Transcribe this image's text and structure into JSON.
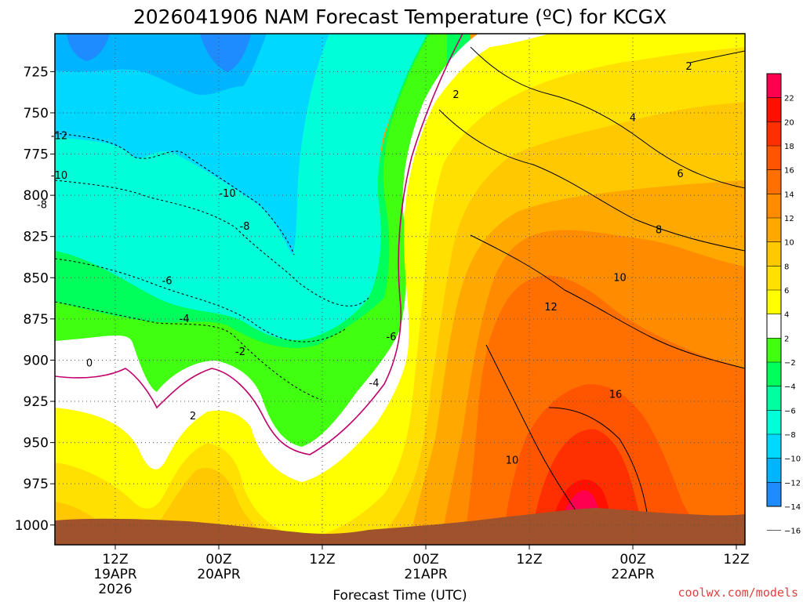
{
  "chart_data": {
    "type": "heatmap",
    "title": "2026041906 NAM Forecast Temperature (ºC) for KCGX",
    "xlabel": "Forecast Time (UTC)",
    "ylabel": "",
    "y_axis": {
      "ticks": [
        725,
        750,
        775,
        800,
        825,
        850,
        875,
        900,
        925,
        950,
        975,
        1000
      ],
      "unit": "hPa",
      "reversed": true,
      "range": [
        1012,
        702
      ]
    },
    "x_axis": {
      "range_hours_from_init": [
        -1,
        79
      ],
      "ticks": [
        {
          "hour": 6,
          "lines": [
            "12Z",
            "19APR",
            "2026"
          ]
        },
        {
          "hour": 18,
          "lines": [
            "00Z",
            "20APR"
          ]
        },
        {
          "hour": 30,
          "lines": [
            "12Z"
          ]
        },
        {
          "hour": 42,
          "lines": [
            "00Z",
            "21APR"
          ]
        },
        {
          "hour": 54,
          "lines": [
            "12Z"
          ]
        },
        {
          "hour": 66,
          "lines": [
            "00Z",
            "22APR"
          ]
        },
        {
          "hour": 78,
          "lines": [
            "12Z"
          ]
        }
      ]
    },
    "colorbar": {
      "levels": [
        -16,
        -14,
        -12,
        -10,
        -8,
        -6,
        -4,
        -2,
        2,
        4,
        6,
        8,
        10,
        12,
        14,
        16,
        18,
        20,
        22
      ],
      "labels": [
        "22",
        "20",
        "18",
        "16",
        "14",
        "12",
        "10",
        "8",
        "6",
        "4",
        "2",
        "−2",
        "−4",
        "−6",
        "−8",
        "−10",
        "−12",
        "−14",
        "−16"
      ],
      "colors": [
        "#1e8cff",
        "#00b4ff",
        "#00d8ff",
        "#00ffd8",
        "#00ffa0",
        "#00ff5a",
        "#40ff10",
        "#ffffff",
        "#ffff00",
        "#ffe000",
        "#ffc800",
        "#ffa800",
        "#ff8c00",
        "#ff7000",
        "#ff5500",
        "#ff3000",
        "#ff1000",
        "#ff0050"
      ]
    },
    "contour_labels": [
      {
        "text": "2",
        "hour": 72.5,
        "p": 722
      },
      {
        "text": "2",
        "hour": 45.5,
        "p": 739
      },
      {
        "text": "4",
        "hour": 66,
        "p": 753
      },
      {
        "text": "6",
        "hour": 71.5,
        "p": 787
      },
      {
        "text": "8",
        "hour": 69,
        "p": 821
      },
      {
        "text": "10",
        "hour": 64.5,
        "p": 850
      },
      {
        "text": "12",
        "hour": 56.5,
        "p": 868
      },
      {
        "text": "16",
        "hour": 64,
        "p": 921
      },
      {
        "text": "10",
        "hour": 52,
        "p": 961
      },
      {
        "text": "-12",
        "hour": -0.5,
        "p": 764
      },
      {
        "text": "-10",
        "hour": -0.5,
        "p": 788
      },
      {
        "text": "-8",
        "hour": -2.5,
        "p": 806
      },
      {
        "text": "-10",
        "hour": 19,
        "p": 799
      },
      {
        "text": "-8",
        "hour": 21,
        "p": 819
      },
      {
        "text": "-6",
        "hour": 12,
        "p": 852
      },
      {
        "text": "-4",
        "hour": 14,
        "p": 875
      },
      {
        "text": "-2",
        "hour": 20.5,
        "p": 895
      },
      {
        "text": "-6",
        "hour": 38,
        "p": 886
      },
      {
        "text": "-4",
        "hour": 36,
        "p": 914
      },
      {
        "text": "0",
        "hour": 3,
        "p": 902
      },
      {
        "text": "2",
        "hour": 15,
        "p": 934
      }
    ],
    "grid": true
  },
  "credit": "coolwx.com/models"
}
